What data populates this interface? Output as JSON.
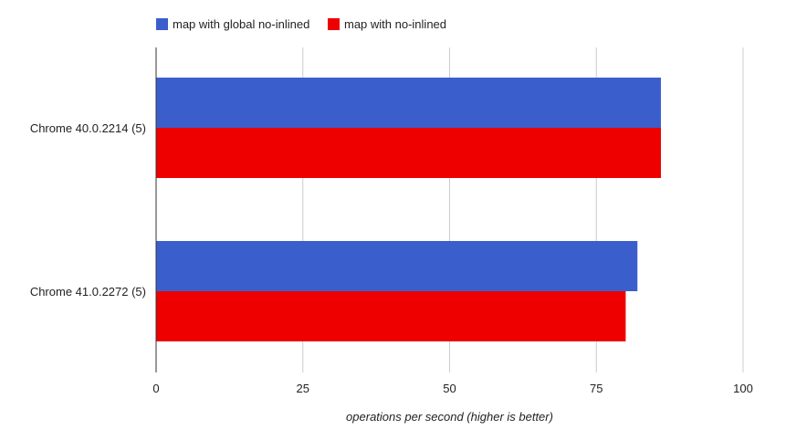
{
  "chart_data": {
    "type": "bar",
    "orientation": "horizontal",
    "categories": [
      "Chrome 40.0.2214 (5)",
      "Chrome 41.0.2272 (5)"
    ],
    "series": [
      {
        "name": "map with global no-inlined",
        "color": "#3a5fcd",
        "values": [
          86,
          82
        ]
      },
      {
        "name": "map with no-inlined",
        "color": "#ee0000",
        "values": [
          86,
          80
        ]
      }
    ],
    "xlabel": "operations per second (higher is better)",
    "ylabel": "",
    "xlim": [
      0,
      100
    ],
    "x_ticks": [
      0,
      25,
      50,
      75,
      100
    ],
    "grid": true,
    "legend_position": "top-left"
  }
}
